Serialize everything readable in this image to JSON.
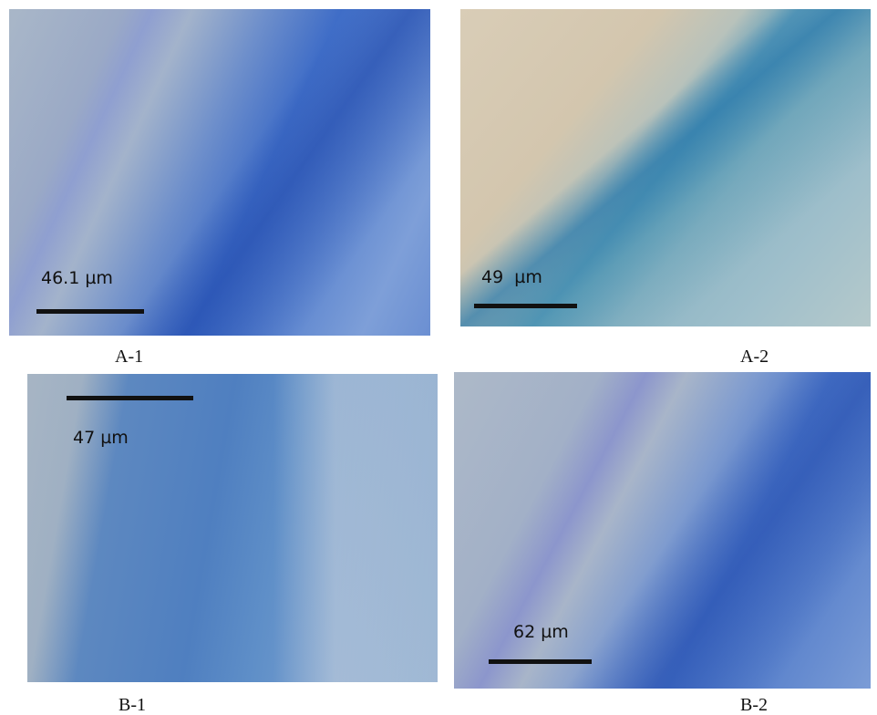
{
  "panels": [
    {
      "label": "A-1",
      "scale_text": "46.1 µm"
    },
    {
      "label": "A-2",
      "scale_text": "49  µm"
    },
    {
      "label": "B-1",
      "scale_text": "47 µm"
    },
    {
      "label": "B-2",
      "scale_text": "62 µm"
    }
  ]
}
